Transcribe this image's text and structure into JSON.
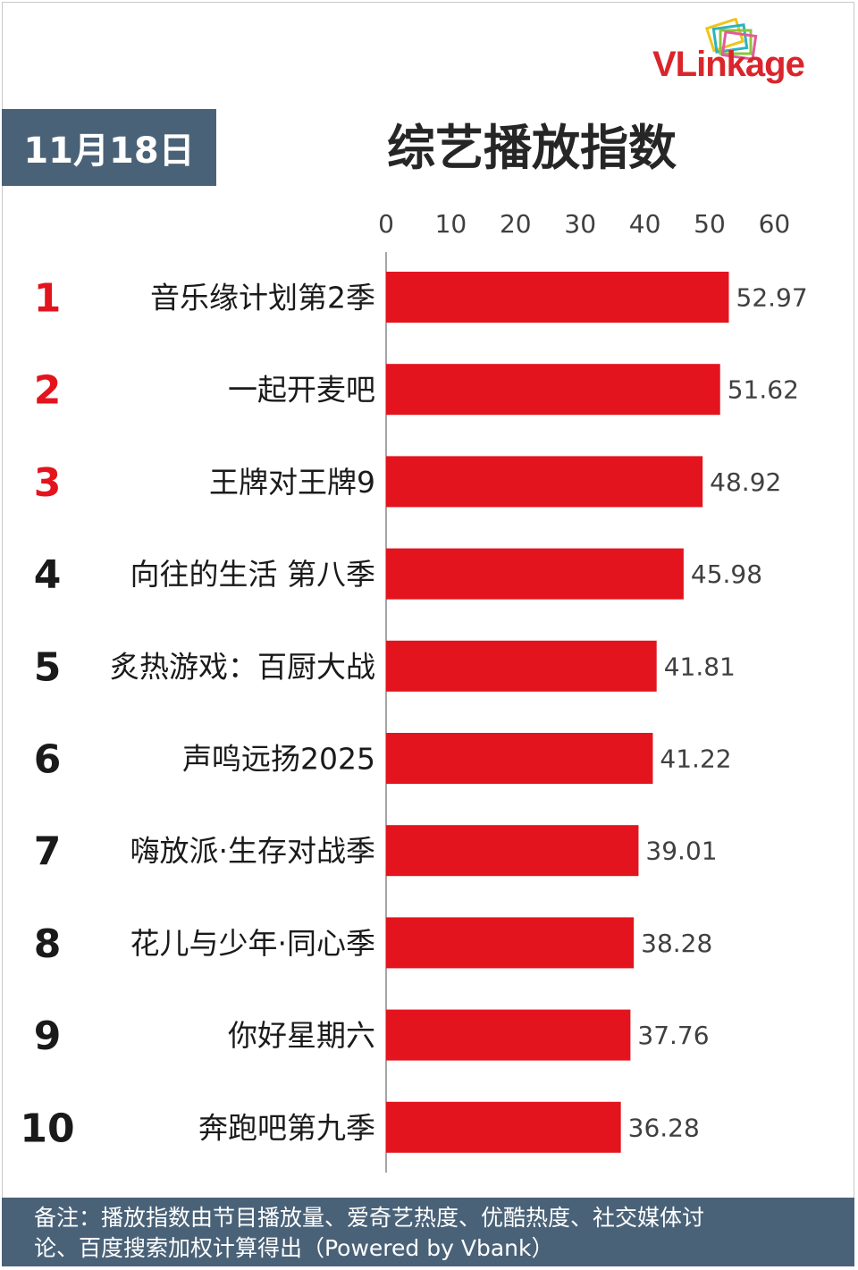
{
  "brand": {
    "logo_text": "VLinkage",
    "colors": {
      "v": "#d9252b",
      "accent": "#f0c419"
    }
  },
  "date": "11月18日",
  "title": "综艺播放指数",
  "chart_data": {
    "type": "bar",
    "orientation": "horizontal",
    "title": "综艺播放指数",
    "xlim": [
      0,
      60
    ],
    "ticks": [
      0,
      10,
      20,
      30,
      40,
      50,
      60
    ],
    "bar_color": "#e3141d",
    "categories": [
      "音乐缘计划第2季",
      "一起开麦吧",
      "王牌对王牌9",
      "向往的生活 第八季",
      "炙热游戏：百厨大战",
      "声鸣远扬2025",
      "嗨放派·生存对战季",
      "花儿与少年·同心季",
      "你好星期六",
      "奔跑吧第九季"
    ],
    "values": [
      52.97,
      51.62,
      48.92,
      45.98,
      41.81,
      41.22,
      39.01,
      38.28,
      37.76,
      36.28
    ],
    "labels": [
      "52.97",
      "51.62",
      "48.92",
      "45.98",
      "41.81",
      "41.22",
      "39.01",
      "38.28",
      "37.76",
      "36.28"
    ],
    "ranks": [
      "1",
      "2",
      "3",
      "4",
      "5",
      "6",
      "7",
      "8",
      "9",
      "10"
    ],
    "rank_colors": [
      "#e3141d",
      "#e3141d",
      "#e3141d",
      "#1a1a1a",
      "#1a1a1a",
      "#1a1a1a",
      "#1a1a1a",
      "#1a1a1a",
      "#1a1a1a",
      "#1a1a1a"
    ]
  },
  "footer": {
    "line1": "备注：播放指数由节目播放量、爱奇艺热度、优酷热度、社交媒体讨",
    "line2": "论、百度搜索加权计算得出（Powered by Vbank）"
  }
}
